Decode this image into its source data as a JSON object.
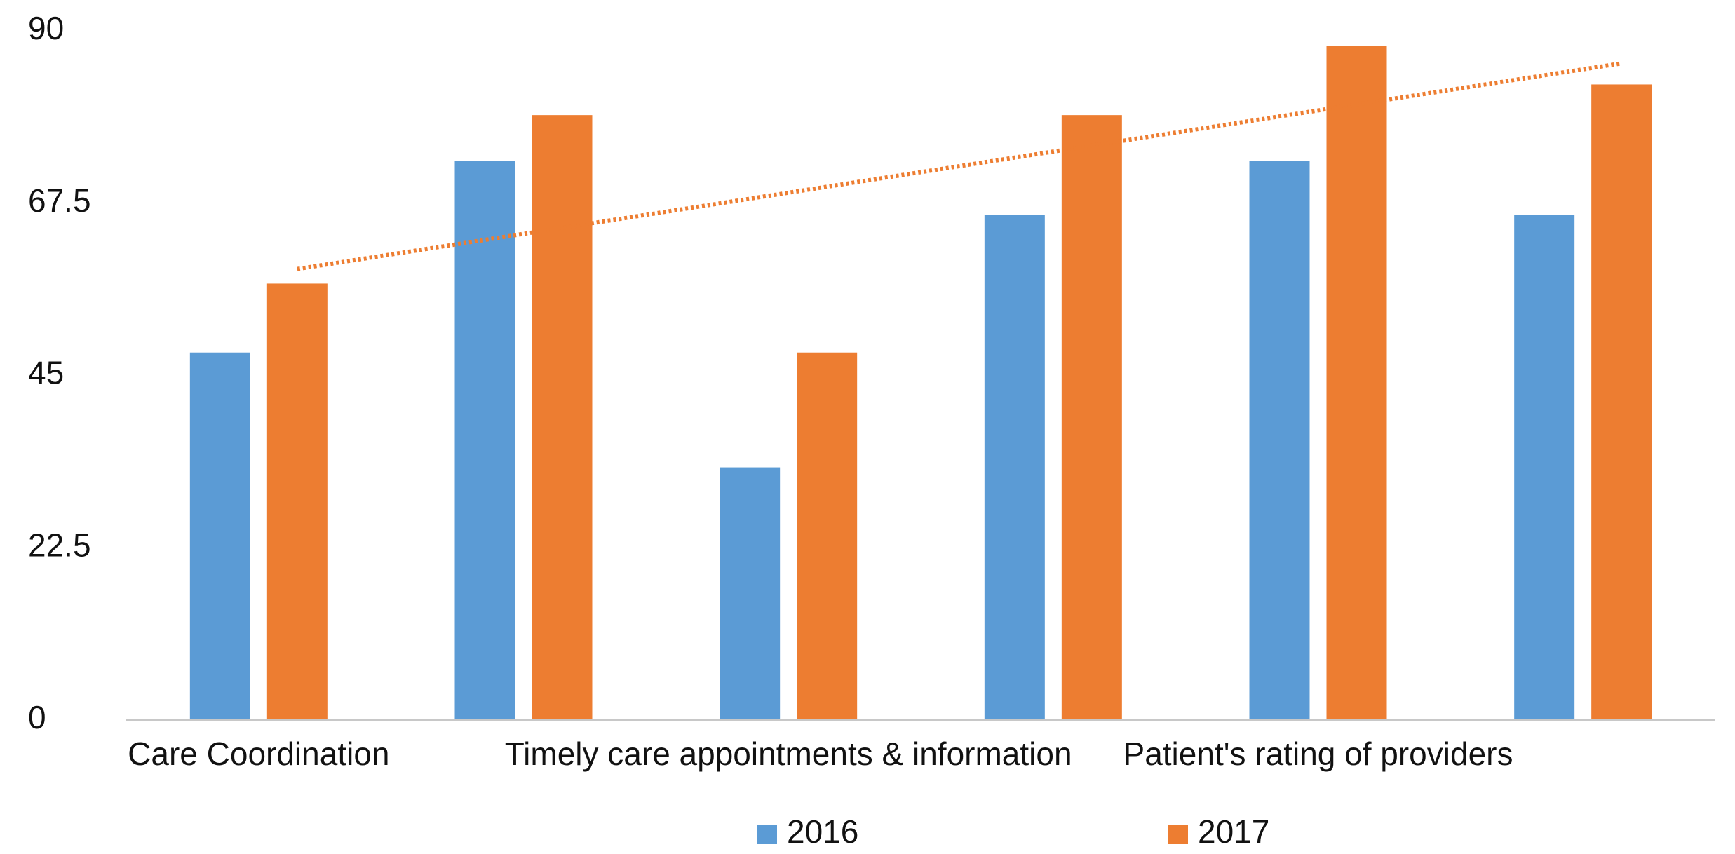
{
  "chart_data": {
    "type": "bar",
    "categories": [
      "Care Coordination",
      null,
      "Timely care appointments & information",
      null,
      "Patient's rating of providers",
      null
    ],
    "series": [
      {
        "name": "2016",
        "color": "#5b9bd5",
        "values": [
          48,
          73,
          33,
          66,
          73,
          66
        ]
      },
      {
        "name": "2017",
        "color": "#ed7d31",
        "values": [
          57,
          79,
          48,
          79,
          88,
          83
        ],
        "trendline": "linear"
      }
    ],
    "ylim": [
      0,
      90
    ],
    "yticks": [
      0,
      22.5,
      45,
      67.5,
      90
    ],
    "grid": false,
    "legend": "bottom"
  }
}
